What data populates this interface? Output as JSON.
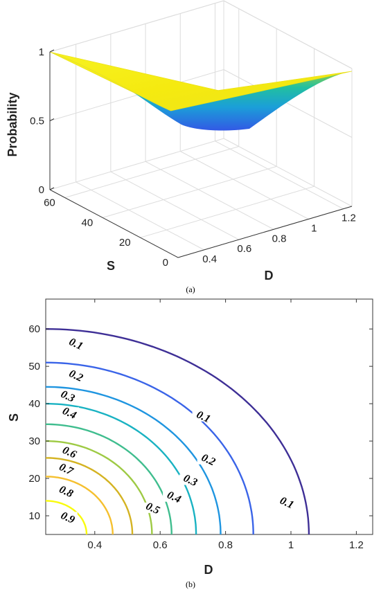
{
  "chart_data": [
    {
      "type": "surface",
      "panel_label": "(a)",
      "xlabel": "D",
      "ylabel": "S",
      "zlabel": "Probability",
      "x_ticks": [
        "0.4",
        "0.6",
        "0.8",
        "1",
        "1.2"
      ],
      "y_ticks": [
        "0",
        "20",
        "40",
        "60"
      ],
      "z_ticks": [
        "0",
        "0.5",
        "1"
      ],
      "xlim": [
        0.25,
        1.25
      ],
      "ylim": [
        0,
        68
      ],
      "zlim": [
        0,
        1
      ],
      "grid": true,
      "colormap": "parula",
      "corner_values": [
        {
          "D": 0.25,
          "S": 68,
          "P": 1.0
        },
        {
          "D": 1.25,
          "S": 68,
          "P": 0.55
        },
        {
          "D": 0.25,
          "S": 0,
          "P": 0.95
        },
        {
          "D": 1.25,
          "S": 0,
          "P": 0.98
        }
      ]
    },
    {
      "type": "contour",
      "panel_label": "(b)",
      "xlabel": "D",
      "ylabel": "S",
      "x_ticks": [
        "0.4",
        "0.6",
        "0.8",
        "1",
        "1.2"
      ],
      "y_ticks": [
        "10",
        "20",
        "30",
        "40",
        "50",
        "60"
      ],
      "xlim": [
        0.25,
        1.25
      ],
      "ylim": [
        5,
        68
      ],
      "levels": [
        {
          "level": 0.9,
          "label": "0.9",
          "color": "#f9fb0e",
          "s0": 14,
          "d0": 0.375
        },
        {
          "level": 0.8,
          "label": "0.8",
          "color": "#f5c02f",
          "s0": 20.5,
          "d0": 0.455
        },
        {
          "level": 0.7,
          "label": "0.7",
          "color": "#d4b322",
          "s0": 25.5,
          "d0": 0.515
        },
        {
          "level": 0.6,
          "label": "0.6",
          "color": "#9eca44",
          "s0": 30,
          "d0": 0.575
        },
        {
          "level": 0.5,
          "label": "0.5",
          "color": "#3fbd8e",
          "s0": 34.5,
          "d0": 0.635
        },
        {
          "level": 0.4,
          "label": "0.4",
          "color": "#19b2c2",
          "s0": 40,
          "d0": 0.71
        },
        {
          "level": 0.3,
          "label": "0.3",
          "color": "#1f95e0",
          "s0": 44.5,
          "d0": 0.785
        },
        {
          "level": 0.2,
          "label": "0.2",
          "color": "#3a64e8",
          "s0": 51,
          "d0": 0.885
        },
        {
          "level": 0.1,
          "label": "0.1",
          "color": "#3e2f96",
          "s0": 60,
          "d0": 1.055
        }
      ],
      "labels_on_lines": [
        {
          "text": "0.9",
          "D": 0.315,
          "S": 9
        },
        {
          "text": "0.8",
          "D": 0.31,
          "S": 16
        },
        {
          "text": "0.7",
          "D": 0.31,
          "S": 22
        },
        {
          "text": "0.6",
          "D": 0.32,
          "S": 26.5
        },
        {
          "text": "0.5",
          "D": 0.575,
          "S": 11.5
        },
        {
          "text": "0.4",
          "D": 0.64,
          "S": 14.5
        },
        {
          "text": "0.4",
          "D": 0.32,
          "S": 37
        },
        {
          "text": "0.3",
          "D": 0.69,
          "S": 19
        },
        {
          "text": "0.3",
          "D": 0.315,
          "S": 41.5
        },
        {
          "text": "0.2",
          "D": 0.745,
          "S": 24.5
        },
        {
          "text": "0.2",
          "D": 0.34,
          "S": 47
        },
        {
          "text": "0.1",
          "D": 0.34,
          "S": 55.5
        },
        {
          "text": "0.1",
          "D": 0.73,
          "S": 36
        },
        {
          "text": "0.1",
          "D": 0.985,
          "S": 13
        }
      ]
    }
  ]
}
